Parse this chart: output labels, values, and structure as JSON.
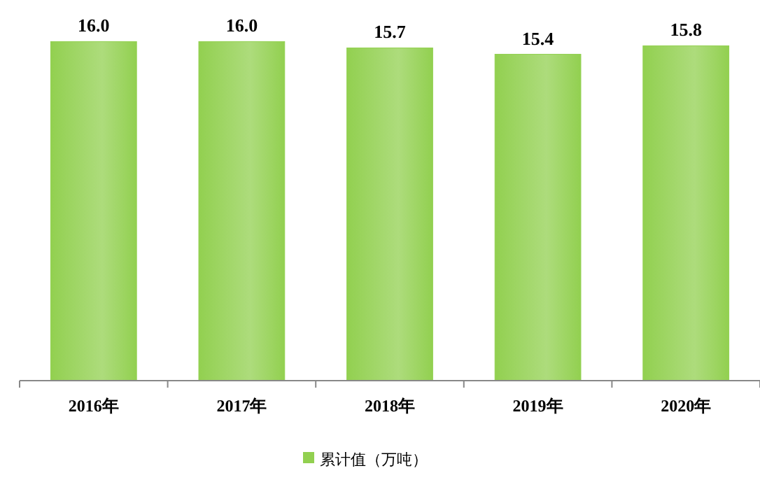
{
  "chart_data": {
    "type": "bar",
    "categories": [
      "2016年",
      "2017年",
      "2018年",
      "2019年",
      "2020年"
    ],
    "series": [
      {
        "name": "累计值（万吨）",
        "color": "#92d050",
        "values": [
          16.0,
          16.0,
          15.7,
          15.4,
          15.8
        ],
        "value_labels": [
          "16.0",
          "16.0",
          "15.7",
          "15.4",
          "15.8"
        ]
      }
    ],
    "tick_labels": "x",
    "legend": "bottom"
  }
}
